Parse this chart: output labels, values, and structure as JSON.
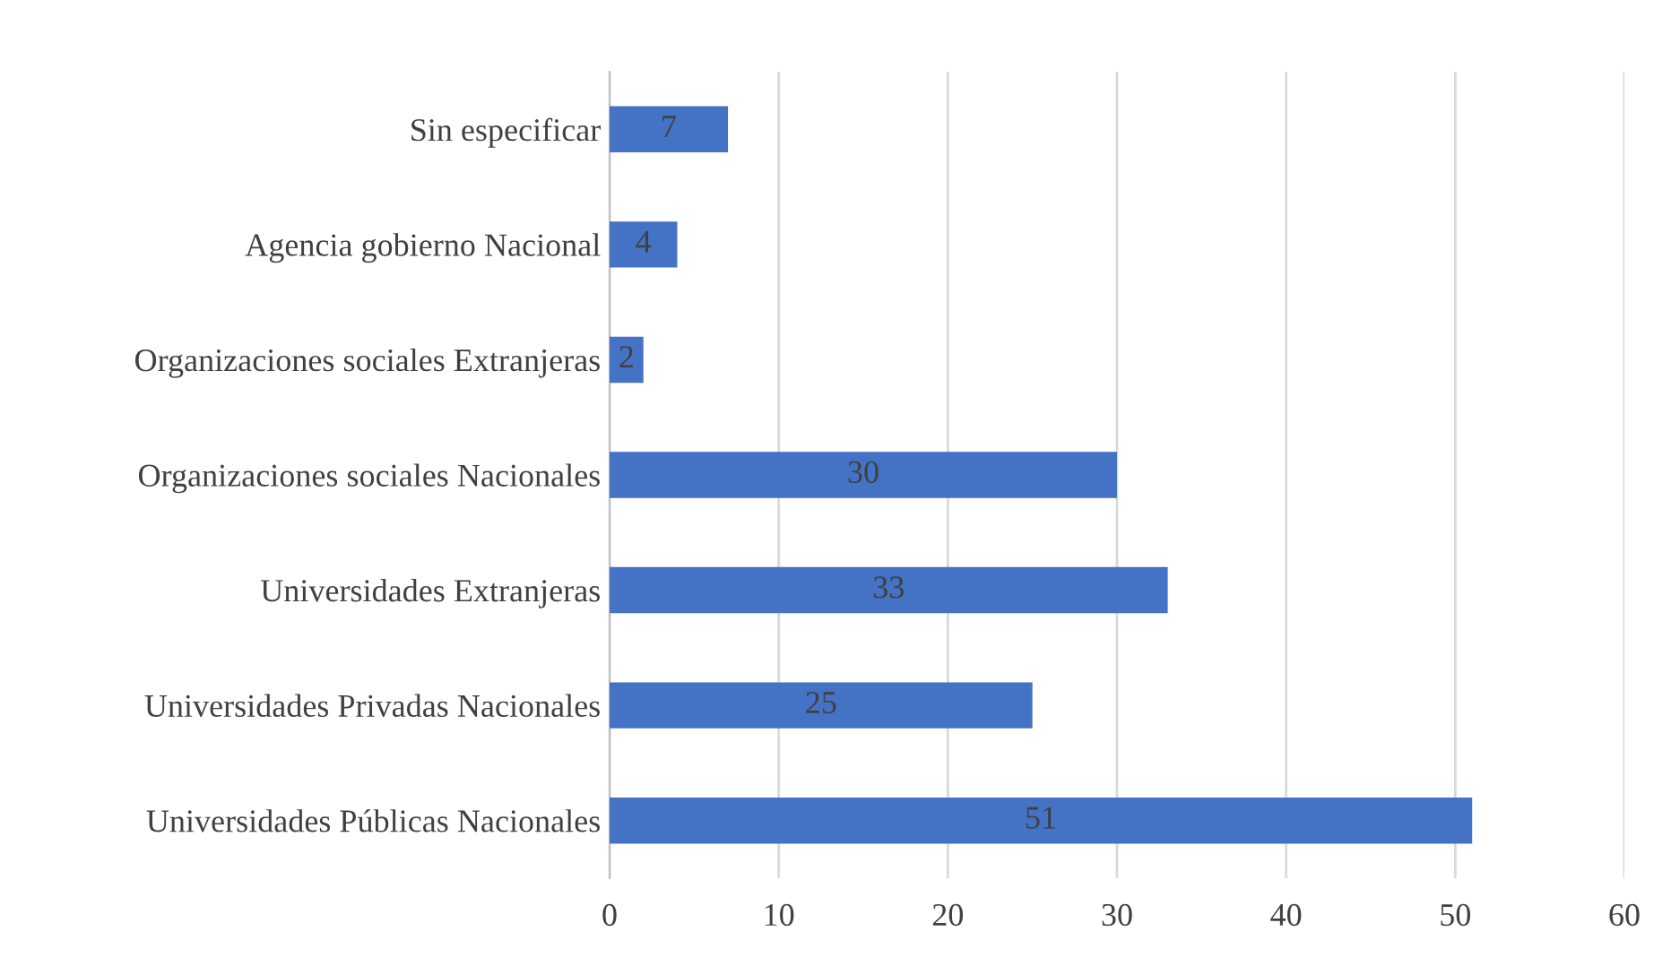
{
  "chart_data": {
    "type": "bar",
    "orientation": "horizontal",
    "categories": [
      "Sin especificar",
      "Agencia gobierno Nacional",
      "Organizaciones sociales Extranjeras",
      "Organizaciones sociales Nacionales",
      "Universidades Extranjeras",
      "Universidades Privadas Nacionales",
      "Universidades Públicas Nacionales"
    ],
    "values": [
      7,
      4,
      2,
      30,
      33,
      25,
      51
    ],
    "color": "#4472c4",
    "xlim": [
      0,
      60
    ],
    "xticks": [
      0,
      10,
      20,
      30,
      40,
      50,
      60
    ],
    "grid": "x",
    "data_labels": true
  }
}
